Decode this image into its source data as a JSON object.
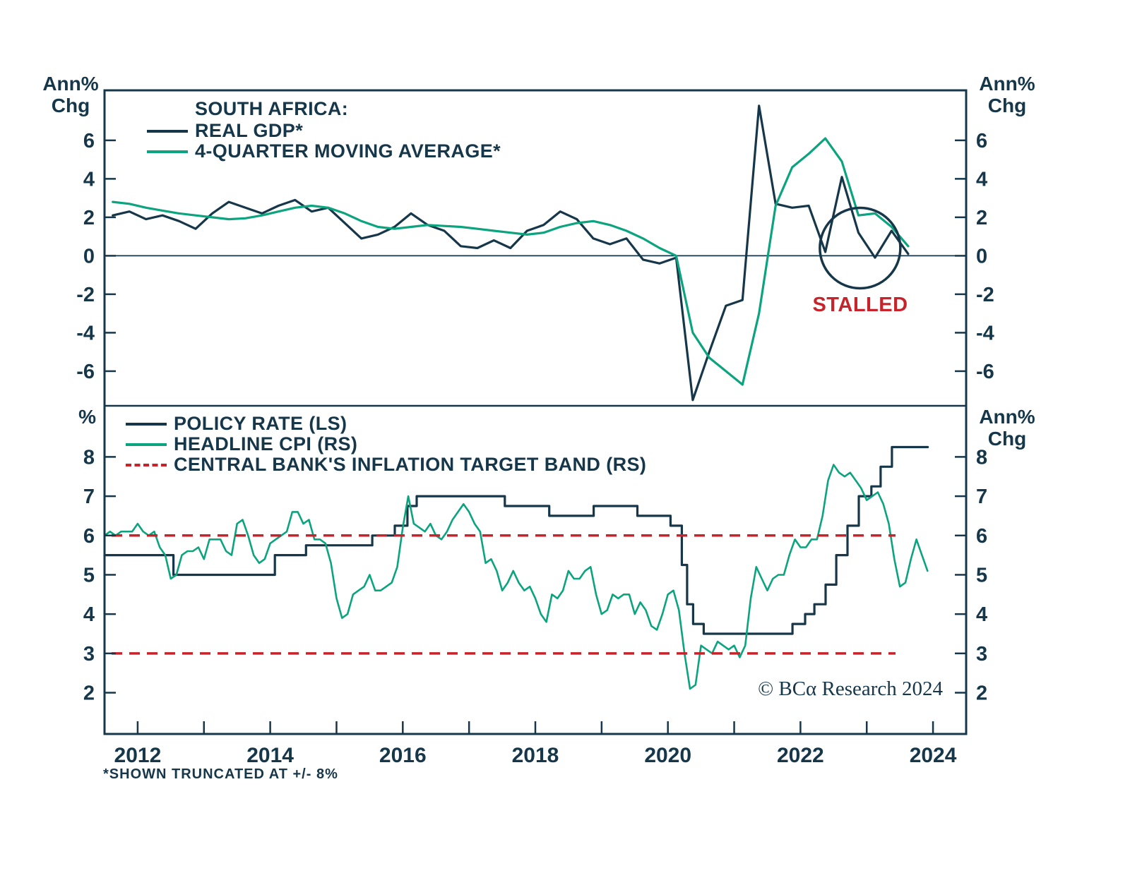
{
  "page": {
    "background": "#ffffff",
    "footnote": "*SHOWN TRUNCATED AT +/- 8%",
    "copyright": "© BCα Research 2024"
  },
  "colors": {
    "navy": "#16374a",
    "green": "#0ca47e",
    "red": "#c7232a"
  },
  "x_axis": {
    "lim": [
      2011.5,
      2024.5
    ],
    "tick_years": [
      2012,
      2013,
      2014,
      2015,
      2016,
      2017,
      2018,
      2019,
      2020,
      2021,
      2022,
      2023,
      2024
    ],
    "label_years": [
      2012,
      2014,
      2016,
      2018,
      2020,
      2022,
      2024
    ]
  },
  "chart_data": [
    {
      "type": "line",
      "panel": "top",
      "title": "SOUTH AFRICA:",
      "ylabel_left": "Ann%\nChg",
      "ylabel_right": "Ann%\nChg",
      "ylim": [
        -7.8,
        8.6
      ],
      "y_ticks": [
        -6,
        -4,
        -2,
        0,
        2,
        4,
        6
      ],
      "zero_line": true,
      "legend": [
        {
          "label": "REAL GDP*",
          "color": "navy"
        },
        {
          "label": "4-QUARTER MOVING AVERAGE*",
          "color": "green"
        }
      ],
      "series": [
        {
          "name": "REAL GDP*",
          "color": "navy",
          "x_start": 2011.625,
          "x_step": 0.25,
          "values": [
            2.1,
            2.3,
            1.9,
            2.1,
            1.8,
            1.4,
            2.2,
            2.8,
            2.5,
            2.2,
            2.6,
            2.9,
            2.3,
            2.5,
            1.7,
            0.9,
            1.1,
            1.5,
            2.2,
            1.6,
            1.3,
            0.5,
            0.4,
            0.8,
            0.4,
            1.3,
            1.6,
            2.3,
            1.9,
            0.9,
            0.6,
            0.9,
            -0.2,
            -0.4,
            -0.1,
            -7.5,
            -5.0,
            -2.6,
            -2.3,
            7.8,
            2.7,
            2.5,
            2.6,
            0.2,
            4.1,
            1.2,
            -0.1,
            1.3,
            0.1
          ]
        },
        {
          "name": "4-QUARTER MOVING AVERAGE*",
          "color": "green",
          "x_start": 2011.625,
          "x_step": 0.25,
          "values": [
            2.8,
            2.7,
            2.5,
            2.35,
            2.2,
            2.1,
            2.0,
            1.9,
            1.95,
            2.1,
            2.3,
            2.5,
            2.6,
            2.5,
            2.2,
            1.8,
            1.5,
            1.4,
            1.5,
            1.6,
            1.55,
            1.5,
            1.4,
            1.3,
            1.2,
            1.1,
            1.2,
            1.5,
            1.7,
            1.8,
            1.6,
            1.3,
            0.9,
            0.4,
            0.0,
            -4.0,
            -5.3,
            -6.0,
            -6.7,
            -3.0,
            2.6,
            4.6,
            5.3,
            6.1,
            4.9,
            2.1,
            2.2,
            1.5,
            0.5
          ]
        }
      ],
      "annotations": {
        "stalled_label": "STALLED",
        "circle": {
          "x": 2022.9,
          "y": 0.4,
          "r": 57
        }
      }
    },
    {
      "type": "line",
      "panel": "bottom",
      "ylabel_left": "%",
      "ylabel_right": "Ann%\nChg",
      "ylim": [
        0.95,
        9.3
      ],
      "y_ticks": [
        2,
        3,
        4,
        5,
        6,
        7,
        8
      ],
      "zero_line": false,
      "legend": [
        {
          "label": "POLICY RATE (LS)",
          "color": "navy"
        },
        {
          "label": "HEADLINE CPI (RS)",
          "color": "green"
        },
        {
          "label": "CENTRAL BANK'S INFLATION TARGET BAND (RS)",
          "color": "red",
          "dash": true
        }
      ],
      "series": [
        {
          "name": "POLICY RATE (LS)",
          "color": "navy",
          "step": true,
          "points": [
            [
              2011.5,
              5.5
            ],
            [
              2012.54,
              5.0
            ],
            [
              2014.07,
              5.5
            ],
            [
              2014.54,
              5.75
            ],
            [
              2015.54,
              6.0
            ],
            [
              2015.88,
              6.25
            ],
            [
              2016.07,
              6.75
            ],
            [
              2016.21,
              7.0
            ],
            [
              2017.54,
              6.75
            ],
            [
              2018.21,
              6.5
            ],
            [
              2018.88,
              6.75
            ],
            [
              2019.54,
              6.5
            ],
            [
              2020.04,
              6.25
            ],
            [
              2020.21,
              5.25
            ],
            [
              2020.29,
              4.25
            ],
            [
              2020.38,
              3.75
            ],
            [
              2020.54,
              3.5
            ],
            [
              2021.88,
              3.75
            ],
            [
              2022.07,
              4.0
            ],
            [
              2022.21,
              4.25
            ],
            [
              2022.38,
              4.75
            ],
            [
              2022.54,
              5.5
            ],
            [
              2022.71,
              6.25
            ],
            [
              2022.88,
              7.0
            ],
            [
              2023.07,
              7.25
            ],
            [
              2023.21,
              7.75
            ],
            [
              2023.38,
              8.25
            ],
            [
              2023.92,
              8.25
            ]
          ]
        },
        {
          "name": "HEADLINE CPI (RS)",
          "color": "green",
          "x_start": 2011.5,
          "x_step": 0.0833333,
          "values": [
            6.0,
            6.1,
            6.0,
            6.1,
            6.1,
            6.1,
            6.3,
            6.1,
            6.0,
            6.1,
            5.7,
            5.5,
            4.9,
            5.0,
            5.5,
            5.6,
            5.6,
            5.7,
            5.4,
            5.9,
            5.9,
            5.9,
            5.6,
            5.5,
            6.3,
            6.4,
            6.0,
            5.5,
            5.3,
            5.4,
            5.8,
            5.9,
            6.0,
            6.1,
            6.6,
            6.6,
            6.3,
            6.4,
            5.9,
            5.9,
            5.8,
            5.3,
            4.4,
            3.9,
            4.0,
            4.5,
            4.6,
            4.7,
            5.0,
            4.6,
            4.6,
            4.7,
            4.8,
            5.2,
            6.2,
            7.0,
            6.3,
            6.2,
            6.1,
            6.3,
            6.0,
            5.9,
            6.1,
            6.4,
            6.6,
            6.8,
            6.6,
            6.3,
            6.1,
            5.3,
            5.4,
            5.1,
            4.6,
            4.8,
            5.1,
            4.8,
            4.6,
            4.7,
            4.4,
            4.0,
            3.8,
            4.5,
            4.4,
            4.6,
            5.1,
            4.9,
            4.9,
            5.1,
            5.2,
            4.5,
            4.0,
            4.1,
            4.5,
            4.4,
            4.5,
            4.5,
            4.0,
            4.3,
            4.1,
            3.7,
            3.6,
            4.0,
            4.5,
            4.6,
            4.1,
            3.0,
            2.1,
            2.2,
            3.2,
            3.1,
            3.0,
            3.3,
            3.2,
            3.1,
            3.2,
            2.9,
            3.2,
            4.4,
            5.2,
            4.9,
            4.6,
            4.9,
            5.0,
            5.0,
            5.5,
            5.9,
            5.7,
            5.7,
            5.9,
            5.9,
            6.5,
            7.4,
            7.8,
            7.6,
            7.5,
            7.6,
            7.4,
            7.2,
            6.9,
            7.0,
            7.1,
            6.8,
            6.3,
            5.4,
            4.7,
            4.8,
            5.4,
            5.9,
            5.5,
            5.1
          ]
        }
      ],
      "target_band": {
        "label": "CENTRAL BANK'S INFLATION TARGET BAND (RS)",
        "color": "red",
        "values": [
          3,
          6
        ]
      }
    }
  ]
}
